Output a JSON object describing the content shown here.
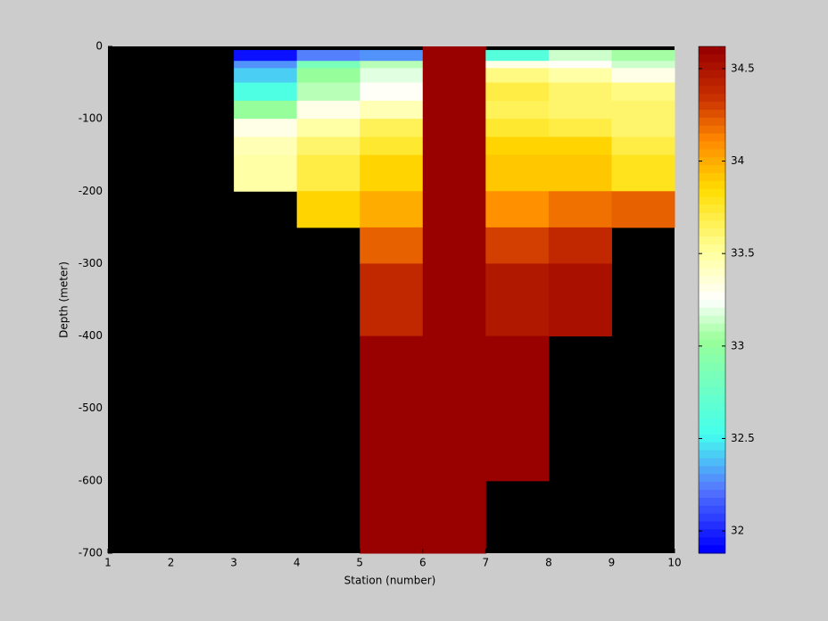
{
  "chart_data": {
    "type": "heatmap",
    "xlabel": "Station (number)",
    "ylabel": "Depth (meter)",
    "x": [
      1,
      2,
      3,
      4,
      5,
      6,
      7,
      8,
      9,
      10
    ],
    "y": [
      0,
      -5,
      -20,
      -30,
      -50,
      -75,
      -100,
      -125,
      -150,
      -200,
      -250,
      -300,
      -400,
      -500,
      -600,
      -700
    ],
    "z": [
      [
        null,
        null,
        null,
        null,
        null,
        34.62,
        null,
        null,
        null
      ],
      [
        null,
        null,
        31.95,
        32.25,
        32.3,
        34.62,
        32.65,
        33.15,
        33.05
      ],
      [
        null,
        null,
        32.3,
        32.85,
        33.1,
        34.62,
        33.3,
        33.28,
        33.15
      ],
      [
        null,
        null,
        32.4,
        33.0,
        33.2,
        34.62,
        33.55,
        33.5,
        33.3
      ],
      [
        null,
        null,
        32.6,
        33.1,
        33.25,
        34.62,
        33.7,
        33.6,
        33.55
      ],
      [
        null,
        null,
        33.0,
        33.3,
        33.45,
        34.62,
        33.65,
        33.6,
        33.6
      ],
      [
        null,
        null,
        33.3,
        33.5,
        33.65,
        34.62,
        33.75,
        33.7,
        33.6
      ],
      [
        null,
        null,
        33.45,
        33.6,
        33.75,
        34.62,
        33.85,
        33.85,
        33.7
      ],
      [
        null,
        null,
        33.5,
        33.7,
        33.85,
        34.62,
        33.9,
        33.9,
        33.8
      ],
      [
        null,
        null,
        null,
        33.85,
        34.0,
        34.62,
        34.1,
        34.15,
        34.2
      ],
      [
        null,
        null,
        null,
        null,
        34.2,
        34.62,
        34.3,
        34.38,
        null
      ],
      [
        null,
        null,
        null,
        null,
        34.38,
        34.62,
        34.45,
        34.52,
        null
      ],
      [
        null,
        null,
        null,
        null,
        34.62,
        34.62,
        34.62,
        null,
        null
      ],
      [
        null,
        null,
        null,
        null,
        34.62,
        34.62,
        34.62,
        null,
        null
      ],
      [
        null,
        null,
        null,
        null,
        34.62,
        34.62,
        null,
        null,
        null
      ]
    ],
    "xlim": [
      1,
      10
    ],
    "xticks": [
      1,
      2,
      3,
      4,
      5,
      6,
      7,
      8,
      9,
      10
    ],
    "ylim": [
      -700,
      0
    ],
    "yticks": [
      0,
      -100,
      -200,
      -300,
      -400,
      -500,
      -600,
      -700
    ],
    "clim": [
      31.88,
      34.62
    ],
    "cticks": [
      32,
      32.5,
      33,
      33.5,
      34,
      34.5
    ],
    "background": "#000000"
  }
}
